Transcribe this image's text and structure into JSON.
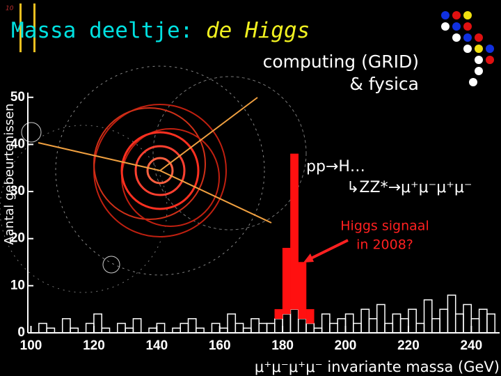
{
  "slide": {
    "slide_number": "10",
    "title": "Massa deeltje:",
    "title_highlight": "de Higgs",
    "subtitle_lines": [
      "computing (GRID)",
      "& fysica"
    ],
    "process": "pp→H…",
    "decay": "↳ZZ*→μ⁺μ⁻μ⁺μ⁻",
    "annotation_lines": [
      "Higgs signaal",
      "in 2008?"
    ]
  },
  "chart_data": {
    "type": "histogram",
    "x_label": "μ⁺μ⁻μ⁺μ⁻ invariante massa (GeV)",
    "y_label": "Aantal gebeurtenissen",
    "bins": [
      100,
      102.5,
      105,
      107.5,
      110,
      112.5,
      115,
      117.5,
      120,
      122.5,
      125,
      127.5,
      130,
      132.5,
      135,
      137.5,
      140,
      142.5,
      145,
      147.5,
      150,
      152.5,
      155,
      157.5,
      160,
      162.5,
      165,
      167.5,
      170,
      172.5,
      175,
      177.5,
      180,
      182.5,
      185,
      187.5,
      190,
      192.5,
      195,
      197.5,
      200,
      202.5,
      205,
      207.5,
      210,
      212.5,
      215,
      217.5,
      220,
      222.5,
      225,
      227.5,
      230,
      232.5,
      235,
      237.5,
      240,
      242.5,
      245,
      247.5
    ],
    "series": [
      {
        "color": "#ffffff",
        "values": [
          0,
          2,
          1,
          0,
          3,
          1,
          0,
          2,
          4,
          1,
          0,
          2,
          1,
          3,
          0,
          1,
          2,
          0,
          1,
          2,
          3,
          1,
          0,
          2,
          1,
          4,
          2,
          1,
          3,
          2,
          2,
          3,
          4,
          5,
          3,
          2,
          1,
          4,
          2,
          3,
          4,
          2,
          5,
          3,
          6,
          2,
          4,
          3,
          5,
          2,
          7,
          3,
          5,
          8,
          4,
          6,
          3,
          5,
          4
        ]
      },
      {
        "color": "#ff1010",
        "values": [
          0,
          0,
          0,
          0,
          0,
          0,
          0,
          0,
          0,
          0,
          0,
          0,
          0,
          0,
          0,
          0,
          0,
          0,
          0,
          0,
          0,
          0,
          0,
          0,
          0,
          0,
          0,
          0,
          0,
          0,
          0,
          2,
          14,
          33,
          12,
          3,
          0,
          0,
          0,
          0,
          0,
          0,
          0,
          0,
          0,
          0,
          0,
          0,
          0,
          0,
          0,
          0,
          0,
          0,
          0,
          0,
          0,
          0,
          0
        ]
      }
    ],
    "xlim": [
      99,
      249
    ],
    "ylim": [
      0,
      51
    ],
    "xticks": [
      100,
      120,
      140,
      160,
      180,
      200,
      220,
      240
    ],
    "yticks": [
      0,
      10,
      20,
      30,
      40,
      50
    ],
    "stacked": true
  }
}
